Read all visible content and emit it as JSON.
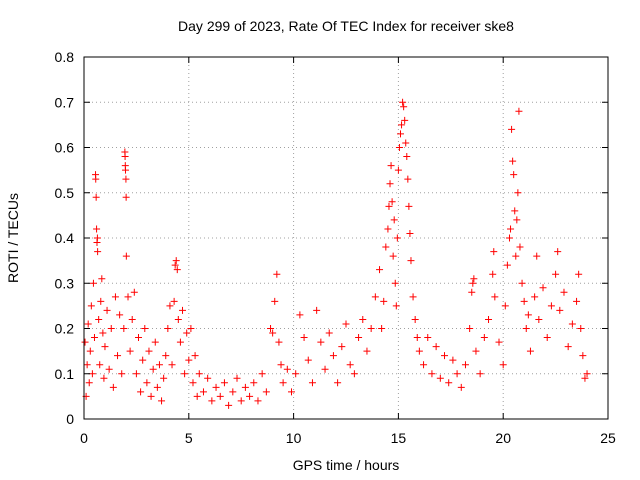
{
  "chart_data": {
    "type": "scatter",
    "title": "Day 299 of 2023, Rate Of TEC Index for receiver ske8",
    "xlabel": "GPS time / hours",
    "ylabel": "ROTI / TECUs",
    "xlim": [
      0,
      25
    ],
    "ylim": [
      0,
      0.8
    ],
    "xticks": [
      0,
      5,
      10,
      15,
      20,
      25
    ],
    "yticks": [
      0,
      0.1,
      0.2,
      0.3,
      0.4,
      0.5,
      0.6,
      0.7,
      0.8
    ],
    "xtick_labels": [
      "0",
      "5",
      "10",
      "15",
      "20",
      "25"
    ],
    "ytick_labels": [
      "0",
      "0.1",
      "0.2",
      "0.3",
      "0.4",
      "0.5",
      "0.6",
      "0.7",
      "0.8"
    ],
    "grid": true,
    "marker": "+",
    "color": "#ff0000",
    "series": [
      {
        "points": [
          [
            0.05,
            0.17
          ],
          [
            0.1,
            0.05
          ],
          [
            0.15,
            0.12
          ],
          [
            0.2,
            0.21
          ],
          [
            0.25,
            0.08
          ],
          [
            0.3,
            0.15
          ],
          [
            0.35,
            0.25
          ],
          [
            0.4,
            0.1
          ],
          [
            0.45,
            0.3
          ],
          [
            0.5,
            0.18
          ],
          [
            0.55,
            0.54
          ],
          [
            0.56,
            0.53
          ],
          [
            0.58,
            0.49
          ],
          [
            0.6,
            0.42
          ],
          [
            0.62,
            0.39
          ],
          [
            0.64,
            0.4
          ],
          [
            0.65,
            0.37
          ],
          [
            0.7,
            0.22
          ],
          [
            0.75,
            0.12
          ],
          [
            0.8,
            0.26
          ],
          [
            0.85,
            0.31
          ],
          [
            0.9,
            0.19
          ],
          [
            0.95,
            0.09
          ],
          [
            1.0,
            0.16
          ],
          [
            1.1,
            0.24
          ],
          [
            1.2,
            0.11
          ],
          [
            1.3,
            0.2
          ],
          [
            1.4,
            0.07
          ],
          [
            1.5,
            0.27
          ],
          [
            1.6,
            0.14
          ],
          [
            1.7,
            0.23
          ],
          [
            1.8,
            0.1
          ],
          [
            1.9,
            0.2
          ],
          [
            1.95,
            0.59
          ],
          [
            1.96,
            0.58
          ],
          [
            1.97,
            0.56
          ],
          [
            1.98,
            0.55
          ],
          [
            2.0,
            0.53
          ],
          [
            2.01,
            0.49
          ],
          [
            2.02,
            0.36
          ],
          [
            2.1,
            0.27
          ],
          [
            2.2,
            0.15
          ],
          [
            2.3,
            0.22
          ],
          [
            2.4,
            0.28
          ],
          [
            2.5,
            0.1
          ],
          [
            2.6,
            0.18
          ],
          [
            2.7,
            0.06
          ],
          [
            2.8,
            0.13
          ],
          [
            2.9,
            0.2
          ],
          [
            3.0,
            0.08
          ],
          [
            3.1,
            0.15
          ],
          [
            3.2,
            0.05
          ],
          [
            3.3,
            0.11
          ],
          [
            3.4,
            0.17
          ],
          [
            3.5,
            0.07
          ],
          [
            3.6,
            0.12
          ],
          [
            3.7,
            0.04
          ],
          [
            3.8,
            0.09
          ],
          [
            3.9,
            0.14
          ],
          [
            4.0,
            0.2
          ],
          [
            4.1,
            0.25
          ],
          [
            4.2,
            0.12
          ],
          [
            4.3,
            0.26
          ],
          [
            4.35,
            0.34
          ],
          [
            4.4,
            0.35
          ],
          [
            4.45,
            0.33
          ],
          [
            4.5,
            0.22
          ],
          [
            4.6,
            0.17
          ],
          [
            4.7,
            0.24
          ],
          [
            4.8,
            0.1
          ],
          [
            4.9,
            0.19
          ],
          [
            5.0,
            0.13
          ],
          [
            5.1,
            0.2
          ],
          [
            5.2,
            0.08
          ],
          [
            5.3,
            0.14
          ],
          [
            5.4,
            0.05
          ],
          [
            5.5,
            0.1
          ],
          [
            5.7,
            0.06
          ],
          [
            5.9,
            0.09
          ],
          [
            6.1,
            0.04
          ],
          [
            6.3,
            0.07
          ],
          [
            6.5,
            0.05
          ],
          [
            6.7,
            0.08
          ],
          [
            6.9,
            0.03
          ],
          [
            7.1,
            0.06
          ],
          [
            7.3,
            0.09
          ],
          [
            7.5,
            0.04
          ],
          [
            7.7,
            0.07
          ],
          [
            7.9,
            0.05
          ],
          [
            8.1,
            0.08
          ],
          [
            8.3,
            0.04
          ],
          [
            8.5,
            0.1
          ],
          [
            8.7,
            0.06
          ],
          [
            8.9,
            0.2
          ],
          [
            9.0,
            0.19
          ],
          [
            9.1,
            0.26
          ],
          [
            9.2,
            0.32
          ],
          [
            9.3,
            0.17
          ],
          [
            9.4,
            0.12
          ],
          [
            9.5,
            0.08
          ],
          [
            9.7,
            0.11
          ],
          [
            9.9,
            0.06
          ],
          [
            10.1,
            0.1
          ],
          [
            10.3,
            0.23
          ],
          [
            10.5,
            0.18
          ],
          [
            10.7,
            0.13
          ],
          [
            10.9,
            0.08
          ],
          [
            11.1,
            0.24
          ],
          [
            11.3,
            0.17
          ],
          [
            11.5,
            0.11
          ],
          [
            11.7,
            0.19
          ],
          [
            11.9,
            0.14
          ],
          [
            12.1,
            0.08
          ],
          [
            12.3,
            0.16
          ],
          [
            12.5,
            0.21
          ],
          [
            12.7,
            0.12
          ],
          [
            12.9,
            0.1
          ],
          [
            13.1,
            0.18
          ],
          [
            13.3,
            0.22
          ],
          [
            13.5,
            0.15
          ],
          [
            13.7,
            0.2
          ],
          [
            13.9,
            0.27
          ],
          [
            14.1,
            0.33
          ],
          [
            14.2,
            0.2
          ],
          [
            14.3,
            0.26
          ],
          [
            14.4,
            0.38
          ],
          [
            14.5,
            0.42
          ],
          [
            14.55,
            0.47
          ],
          [
            14.6,
            0.52
          ],
          [
            14.65,
            0.56
          ],
          [
            14.7,
            0.48
          ],
          [
            14.75,
            0.36
          ],
          [
            14.8,
            0.44
          ],
          [
            14.85,
            0.3
          ],
          [
            14.9,
            0.25
          ],
          [
            14.95,
            0.4
          ],
          [
            15.0,
            0.55
          ],
          [
            15.05,
            0.6
          ],
          [
            15.1,
            0.63
          ],
          [
            15.15,
            0.65
          ],
          [
            15.2,
            0.7
          ],
          [
            15.25,
            0.69
          ],
          [
            15.3,
            0.66
          ],
          [
            15.35,
            0.61
          ],
          [
            15.4,
            0.58
          ],
          [
            15.45,
            0.53
          ],
          [
            15.5,
            0.47
          ],
          [
            15.55,
            0.41
          ],
          [
            15.6,
            0.35
          ],
          [
            15.7,
            0.27
          ],
          [
            15.8,
            0.22
          ],
          [
            15.9,
            0.18
          ],
          [
            16.0,
            0.15
          ],
          [
            16.2,
            0.12
          ],
          [
            16.4,
            0.18
          ],
          [
            16.6,
            0.1
          ],
          [
            16.8,
            0.16
          ],
          [
            17.0,
            0.09
          ],
          [
            17.2,
            0.14
          ],
          [
            17.4,
            0.08
          ],
          [
            17.6,
            0.13
          ],
          [
            17.8,
            0.1
          ],
          [
            18.0,
            0.07
          ],
          [
            18.2,
            0.12
          ],
          [
            18.4,
            0.2
          ],
          [
            18.5,
            0.28
          ],
          [
            18.55,
            0.3
          ],
          [
            18.6,
            0.31
          ],
          [
            18.7,
            0.15
          ],
          [
            18.9,
            0.1
          ],
          [
            19.1,
            0.18
          ],
          [
            19.3,
            0.22
          ],
          [
            19.5,
            0.32
          ],
          [
            19.55,
            0.37
          ],
          [
            19.6,
            0.27
          ],
          [
            19.8,
            0.17
          ],
          [
            20.0,
            0.12
          ],
          [
            20.1,
            0.25
          ],
          [
            20.2,
            0.34
          ],
          [
            20.3,
            0.4
          ],
          [
            20.35,
            0.42
          ],
          [
            20.4,
            0.64
          ],
          [
            20.45,
            0.57
          ],
          [
            20.5,
            0.54
          ],
          [
            20.55,
            0.46
          ],
          [
            20.6,
            0.36
          ],
          [
            20.65,
            0.44
          ],
          [
            20.7,
            0.5
          ],
          [
            20.75,
            0.68
          ],
          [
            20.8,
            0.38
          ],
          [
            20.9,
            0.3
          ],
          [
            21.0,
            0.26
          ],
          [
            21.1,
            0.2
          ],
          [
            21.2,
            0.23
          ],
          [
            21.3,
            0.15
          ],
          [
            21.5,
            0.27
          ],
          [
            21.6,
            0.36
          ],
          [
            21.7,
            0.22
          ],
          [
            21.9,
            0.29
          ],
          [
            22.1,
            0.18
          ],
          [
            22.3,
            0.25
          ],
          [
            22.5,
            0.32
          ],
          [
            22.6,
            0.37
          ],
          [
            22.7,
            0.24
          ],
          [
            22.9,
            0.28
          ],
          [
            23.1,
            0.16
          ],
          [
            23.3,
            0.21
          ],
          [
            23.5,
            0.26
          ],
          [
            23.6,
            0.32
          ],
          [
            23.7,
            0.2
          ],
          [
            23.8,
            0.14
          ],
          [
            23.9,
            0.09
          ],
          [
            24.0,
            0.1
          ]
        ]
      }
    ]
  }
}
